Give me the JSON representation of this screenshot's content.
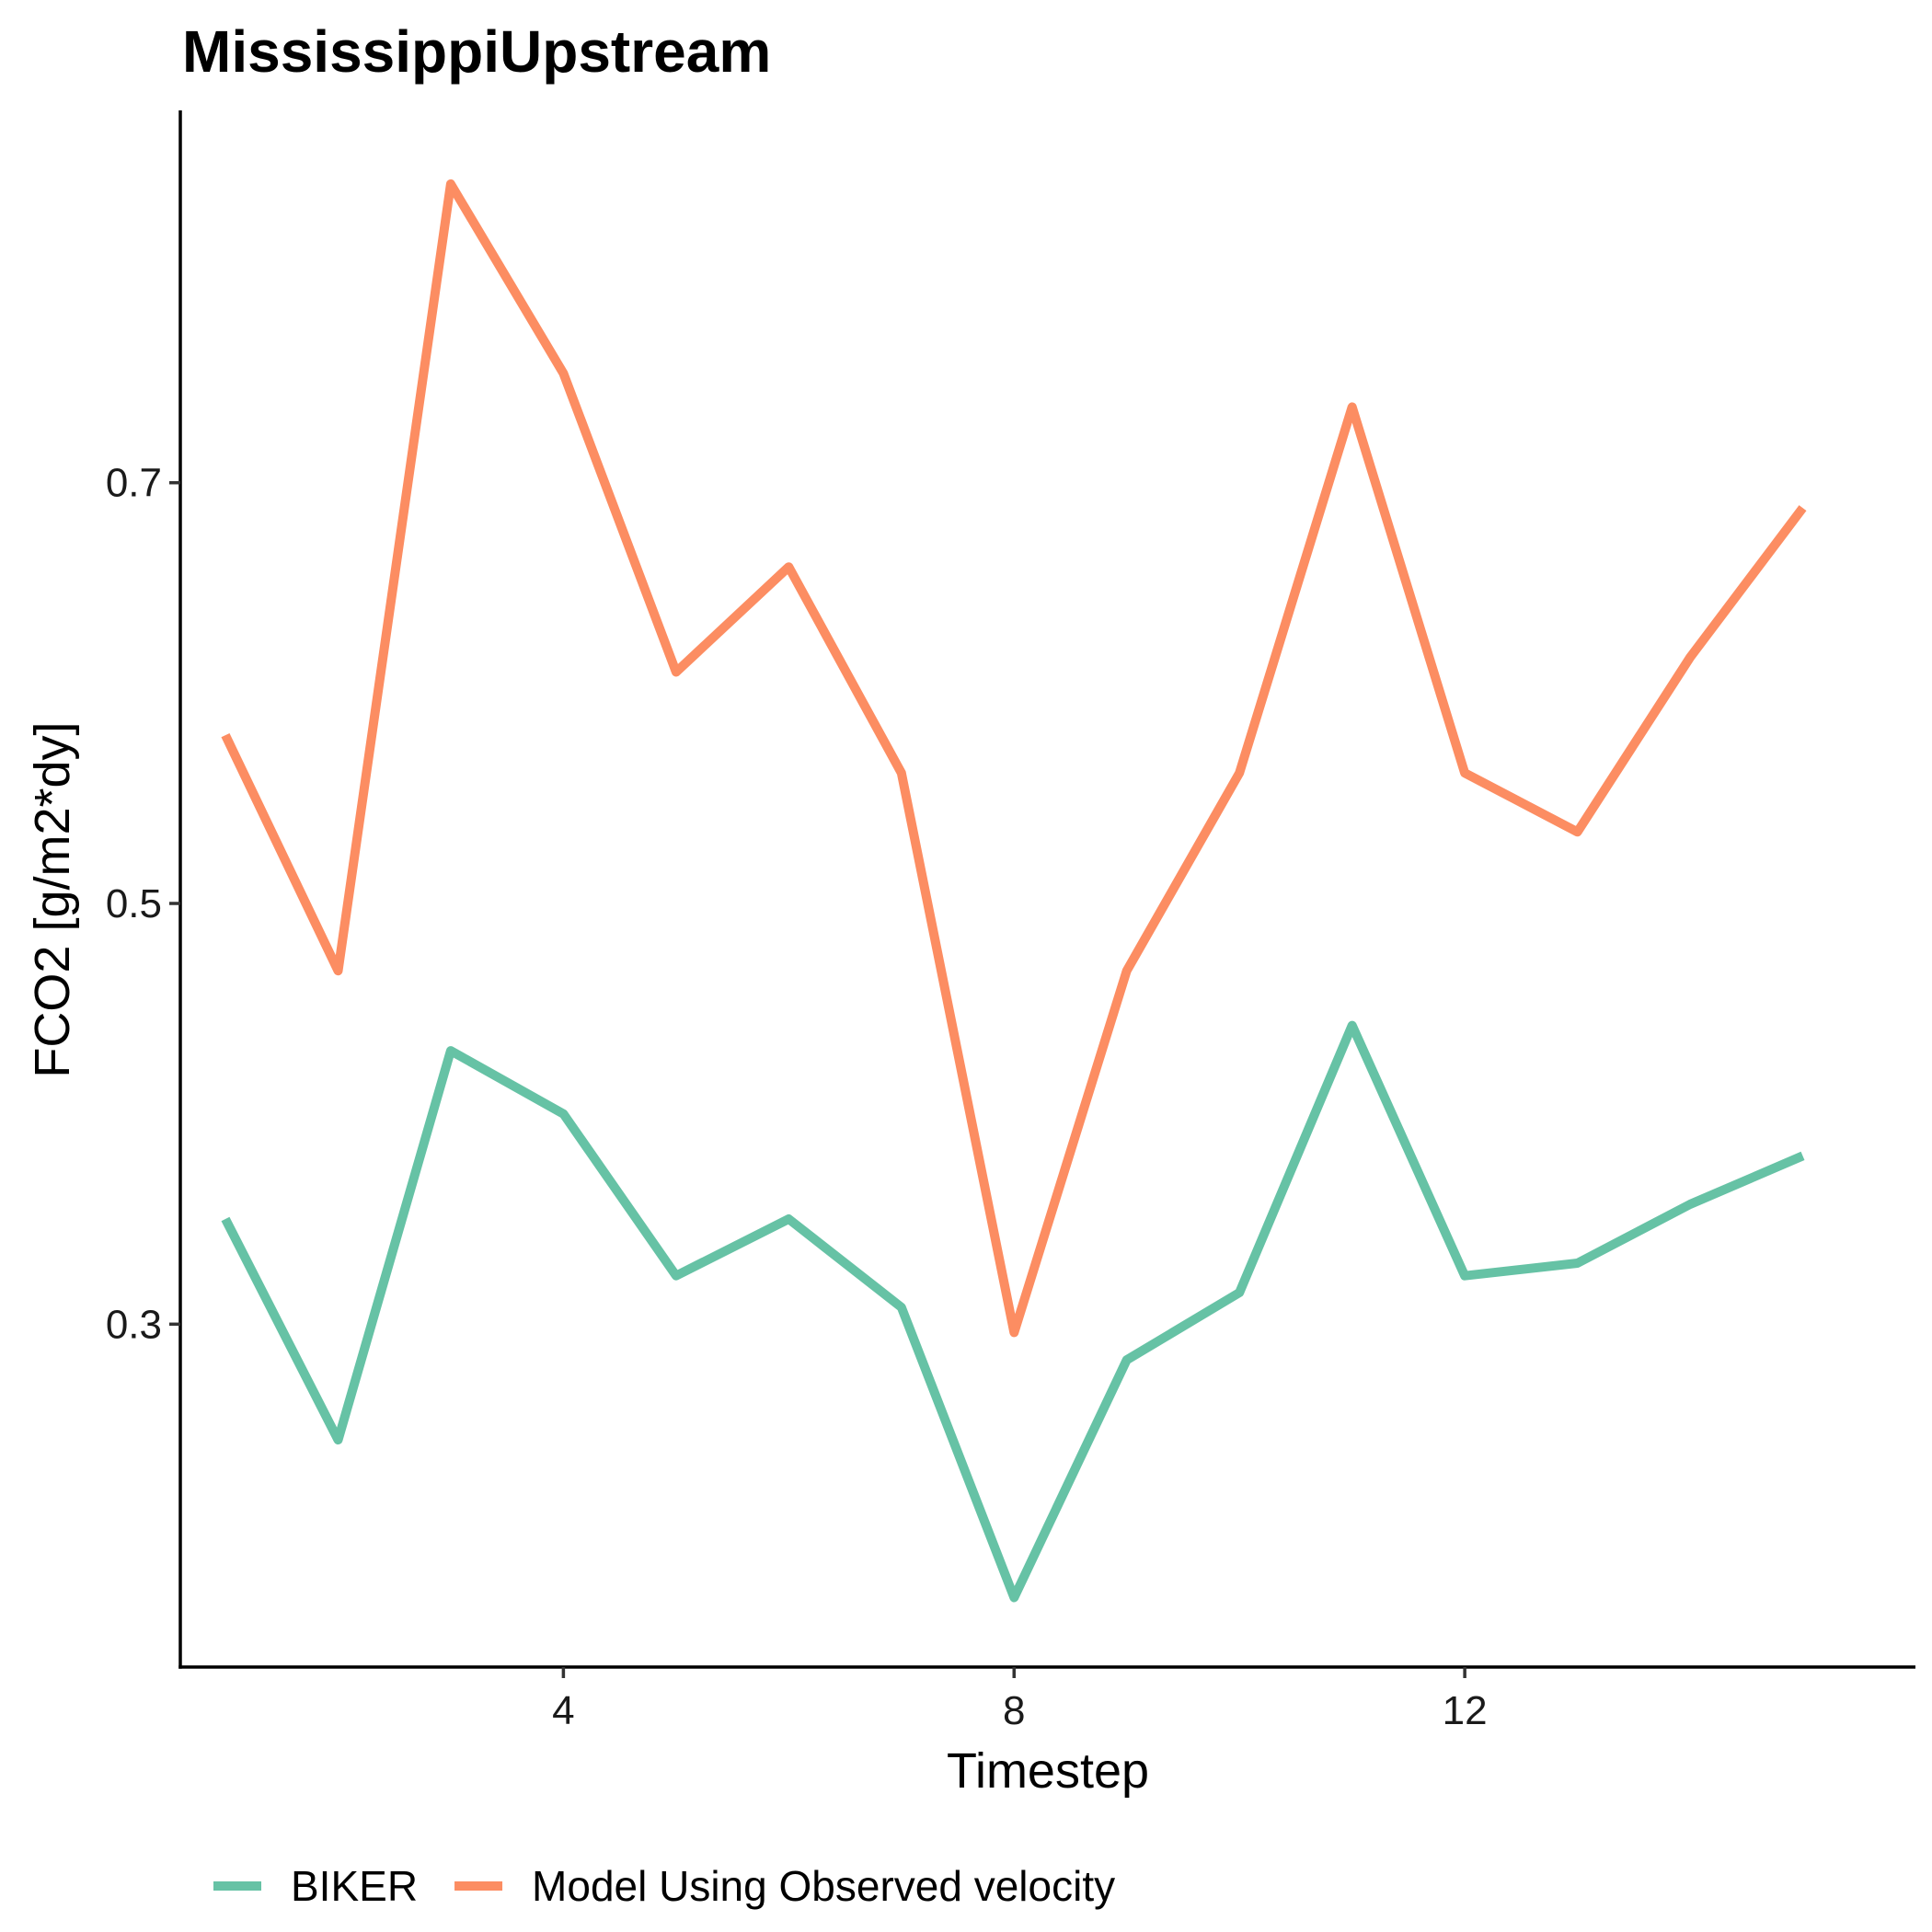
{
  "chart_data": {
    "type": "line",
    "title": "MississippiUpstream",
    "xlabel": "Timestep",
    "ylabel": "FCO2 [g/m2*dy]",
    "x": [
      1,
      2,
      3,
      4,
      5,
      6,
      7,
      8,
      9,
      10,
      11,
      12,
      13,
      14,
      15
    ],
    "xlim": [
      0.6,
      16.0
    ],
    "ylim": [
      0.137,
      0.877
    ],
    "xticks": [
      4,
      8,
      12
    ],
    "xtick_labels": [
      "4",
      "8",
      "12"
    ],
    "yticks": [
      0.3,
      0.5,
      0.7
    ],
    "ytick_labels": [
      "0.3",
      "0.5",
      "0.7"
    ],
    "grid": false,
    "legend_position": "bottom",
    "series": [
      {
        "name": "BIKER",
        "color": "#66C2A5",
        "values": [
          0.35,
          0.245,
          0.43,
          0.4,
          0.323,
          0.35,
          0.308,
          0.17,
          0.283,
          0.315,
          0.442,
          0.323,
          0.329,
          0.357,
          0.38
        ]
      },
      {
        "name": "Model Using Observed velocity",
        "color": "#FC8D62",
        "values": [
          0.58,
          0.468,
          0.842,
          0.752,
          0.61,
          0.66,
          0.562,
          0.296,
          0.468,
          0.562,
          0.736,
          0.562,
          0.534,
          0.617,
          0.688
        ]
      }
    ]
  }
}
